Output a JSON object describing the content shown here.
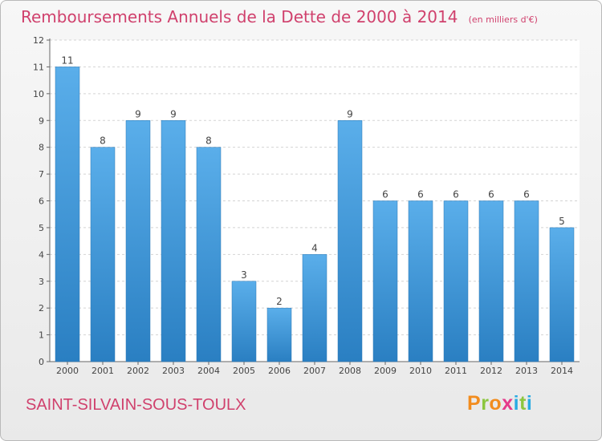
{
  "header": {
    "title": "Remboursements Annuels de la Dette de 2000 à 2014",
    "unit": "(en milliers d'€)"
  },
  "footer": {
    "commune": "SAINT-SILVAIN-SOUS-TOULX",
    "logo_letters": [
      "P",
      "r",
      "o",
      "x",
      "i",
      "t",
      "i"
    ],
    "logo_colors": [
      "#f28c1e",
      "#8cc63f",
      "#f28c1e",
      "#e63a8a",
      "#29abe2",
      "#8cc63f",
      "#29abe2"
    ]
  },
  "chart_data": {
    "type": "bar",
    "title": "Remboursements Annuels de la Dette de 2000 à 2014",
    "categories": [
      "2000",
      "2001",
      "2002",
      "2003",
      "2004",
      "2005",
      "2006",
      "2007",
      "2008",
      "2009",
      "2010",
      "2011",
      "2012",
      "2013",
      "2014"
    ],
    "values": [
      11,
      8,
      9,
      9,
      8,
      3,
      2,
      4,
      9,
      6,
      6,
      6,
      6,
      6,
      5
    ],
    "ylim": [
      0,
      12
    ],
    "yticks": [
      0,
      1,
      2,
      3,
      4,
      5,
      6,
      7,
      8,
      9,
      10,
      11,
      12
    ],
    "grid": true,
    "bar_color": "#3d95d8"
  }
}
